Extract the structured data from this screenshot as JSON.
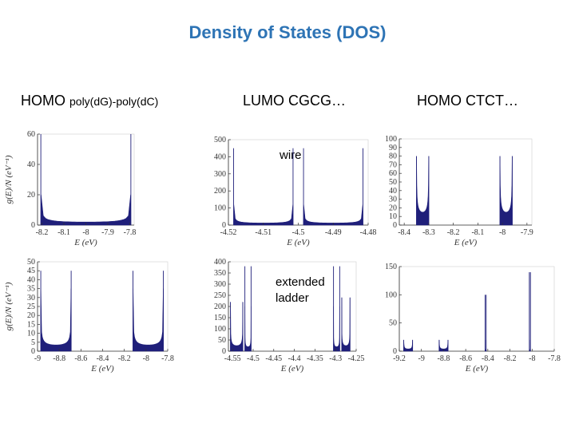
{
  "title": "Density of States (DOS)",
  "headers": {
    "col1_main": "HOMO ",
    "col1_small": "poly(dG)-poly(dC)",
    "col2": "LUMO CGCG…",
    "col3": "HOMO CTCT…"
  },
  "notes": {
    "wire": "wire",
    "extended": "extended",
    "ladder": "ladder"
  },
  "colors": {
    "title": "#2e74b5",
    "fill": "#1f1f7a"
  },
  "chart_data": [
    {
      "type": "area",
      "name": "homo-polydG-wire",
      "xlabel": "E (eV)",
      "ylabel": "g(E)/N (eV⁻¹)",
      "xlim": [
        -8.22,
        -7.78
      ],
      "ylim": [
        0,
        60
      ],
      "xticks": [
        -8.2,
        -8.1,
        -8,
        -7.9,
        -7.8
      ],
      "xtick_labels": [
        "-8.2",
        "-8.1",
        "-8",
        "-7.9",
        "-7.8"
      ],
      "yticks": [
        0,
        20,
        40,
        60
      ],
      "ytick_labels": [
        "0",
        "20",
        "40",
        "60"
      ],
      "bands": [
        {
          "lo": -8.205,
          "hi": -7.795,
          "peak": 60,
          "base": 2
        }
      ]
    },
    {
      "type": "area",
      "name": "lumo-cgcg-wire",
      "xlabel": "E (eV)",
      "ylabel": "",
      "xlim": [
        -4.52,
        -4.48
      ],
      "ylim": [
        0,
        500
      ],
      "xticks": [
        -4.52,
        -4.51,
        -4.5,
        -4.49,
        -4.48
      ],
      "xtick_labels": [
        "-4.52",
        "-4.51",
        "-4.5",
        "-4.49",
        "-4.48"
      ],
      "yticks": [
        0,
        100,
        200,
        300,
        400,
        500
      ],
      "ytick_labels": [
        "0",
        "100",
        "200",
        "300",
        "400",
        "500"
      ],
      "bands": [
        {
          "lo": -4.5185,
          "hi": -4.5015,
          "peak": 450,
          "base": 12
        },
        {
          "lo": -4.4985,
          "hi": -4.4815,
          "peak": 450,
          "base": 12
        }
      ]
    },
    {
      "type": "area",
      "name": "homo-ctct-wire",
      "xlabel": "E (eV)",
      "ylabel": "",
      "xlim": [
        -8.42,
        -7.88
      ],
      "ylim": [
        0,
        100
      ],
      "xticks": [
        -8.4,
        -8.3,
        -8.2,
        -8.1,
        -8,
        -7.9
      ],
      "xtick_labels": [
        "-8.4",
        "-8.3",
        "-8.2",
        "-8.1",
        "-8",
        "-7.9"
      ],
      "yticks": [
        0,
        10,
        20,
        30,
        40,
        50,
        60,
        70,
        80,
        90,
        100
      ],
      "ytick_labels": [
        "0",
        "10",
        "20",
        "30",
        "40",
        "50",
        "60",
        "70",
        "80",
        "90",
        "100"
      ],
      "bands": [
        {
          "lo": -8.35,
          "hi": -8.3,
          "peak": 80,
          "base": 15
        },
        {
          "lo": -8.01,
          "hi": -7.96,
          "peak": 80,
          "base": 15
        }
      ]
    },
    {
      "type": "area",
      "name": "homo-polydG-ladder",
      "xlabel": "E (eV)",
      "ylabel": "g(E)/N (eV⁻¹)",
      "xlim": [
        -9,
        -7.8
      ],
      "ylim": [
        0,
        50
      ],
      "xticks": [
        -9,
        -8.8,
        -8.6,
        -8.4,
        -8.2,
        -8,
        -7.8
      ],
      "xtick_labels": [
        "-9",
        "-8.8",
        "-8.6",
        "-8.4",
        "-8.2",
        "-8",
        "-7.8"
      ],
      "yticks": [
        0,
        5,
        10,
        15,
        20,
        25,
        30,
        35,
        40,
        45,
        50
      ],
      "ytick_labels": [
        "0",
        "5",
        "10",
        "15",
        "20",
        "25",
        "30",
        "35",
        "40",
        "45",
        "50"
      ],
      "bands": [
        {
          "lo": -8.97,
          "hi": -8.69,
          "peak": 45,
          "base": 3.5
        },
        {
          "lo": -8.12,
          "hi": -7.84,
          "peak": 45,
          "base": 3.5
        }
      ]
    },
    {
      "type": "area",
      "name": "lumo-cgcg-ladder",
      "xlabel": "E (eV)",
      "ylabel": "",
      "xlim": [
        -4.56,
        -4.25
      ],
      "ylim": [
        0,
        400
      ],
      "xticks": [
        -4.55,
        -4.5,
        -4.45,
        -4.4,
        -4.35,
        -4.3,
        -4.25
      ],
      "xtick_labels": [
        "-4.55",
        "-4.5",
        "-4.45",
        "-4.4",
        "-4.35",
        "-4.3",
        "-4.25"
      ],
      "yticks": [
        0,
        50,
        100,
        150,
        200,
        250,
        300,
        350,
        400
      ],
      "ytick_labels": [
        "0",
        "50",
        "100",
        "150",
        "200",
        "250",
        "300",
        "350",
        "400"
      ],
      "bands": [
        {
          "lo": -4.555,
          "hi": -4.525,
          "peak": 220,
          "base": 25
        },
        {
          "lo": -4.52,
          "hi": -4.505,
          "peak": 380,
          "base": 20
        },
        {
          "lo": -4.305,
          "hi": -4.29,
          "peak": 380,
          "base": 20
        },
        {
          "lo": -4.285,
          "hi": -4.265,
          "peak": 240,
          "base": 25
        }
      ]
    },
    {
      "type": "area",
      "name": "homo-ctct-ladder",
      "xlabel": "E (eV)",
      "ylabel": "",
      "xlim": [
        -9.2,
        -7.8
      ],
      "ylim": [
        0,
        150
      ],
      "xticks": [
        -9.2,
        -9,
        -8.8,
        -8.6,
        -8.4,
        -8.2,
        -8,
        -7.8
      ],
      "xtick_labels": [
        "-9.2",
        "-9",
        "-8.8",
        "-8.6",
        "-8.4",
        "-8.2",
        "-8",
        "-7.8"
      ],
      "yticks": [
        0,
        50,
        100,
        150
      ],
      "ytick_labels": [
        "0",
        "50",
        "100",
        "150"
      ],
      "bands": [
        {
          "lo": -9.16,
          "hi": -9.08,
          "peak": 20,
          "base": 4
        },
        {
          "lo": -8.84,
          "hi": -8.76,
          "peak": 20,
          "base": 4
        },
        {
          "lo": -8.425,
          "hi": -8.415,
          "peak": 100,
          "base": 2
        },
        {
          "lo": -8.025,
          "hi": -8.015,
          "peak": 140,
          "base": 2
        }
      ]
    }
  ]
}
